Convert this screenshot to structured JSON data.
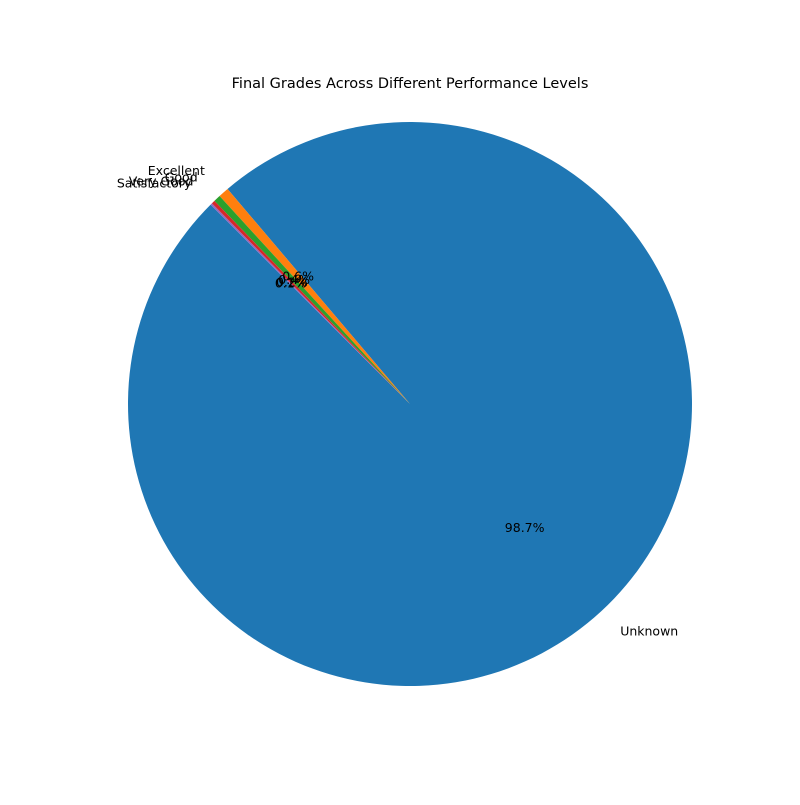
{
  "chart_data": {
    "type": "pie",
    "title": "Final Grades Across Different Performance Levels",
    "slices": [
      {
        "label": "Unknown",
        "value": 98.7,
        "pct_text": "98.7%",
        "color": "#1f77b4"
      },
      {
        "label": "Excellent",
        "value": 0.6,
        "pct_text": "0.6%",
        "color": "#ff7f0e"
      },
      {
        "label": "Good",
        "value": 0.4,
        "pct_text": "0.4%",
        "color": "#2ca02c"
      },
      {
        "label": "Very Good",
        "value": 0.2,
        "pct_text": "0.2%",
        "color": "#d62728"
      },
      {
        "label": "Satisfactory",
        "value": 0.1,
        "pct_text": "0.1%",
        "color": "#9467bd"
      }
    ],
    "start_angle_deg": 135,
    "direction": "counterclockwise",
    "legend": "none"
  }
}
